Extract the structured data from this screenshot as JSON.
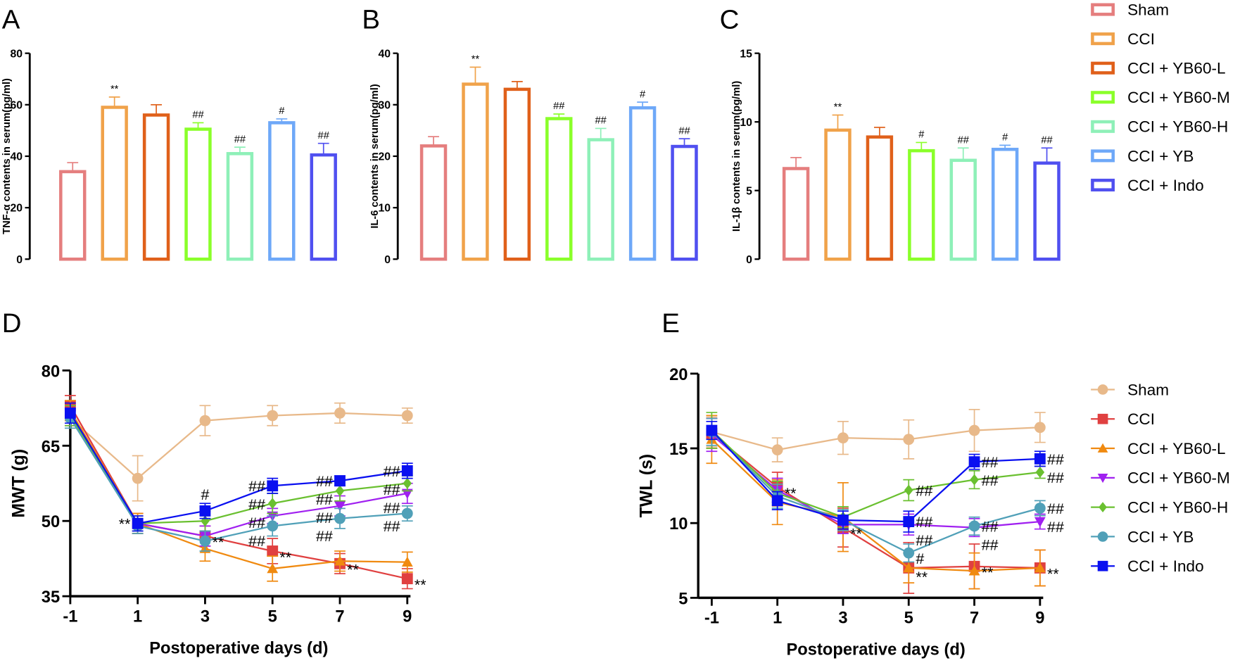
{
  "colors": {
    "bars": [
      "#e57e7e",
      "#f0a24a",
      "#e0601a",
      "#8aff2a",
      "#8ef0b8",
      "#6ea8f8",
      "#5050f0"
    ],
    "lines": [
      "#e8b98a",
      "#e04040",
      "#f08a10",
      "#a020f0",
      "#6ac030",
      "#50a0b8",
      "#0a10f0"
    ]
  },
  "bar_legend": [
    "Sham",
    "CCI",
    "CCI + YB60-L",
    "CCI + YB60-M",
    "CCI + YB60-H",
    "CCI + YB",
    "CCI + Indo"
  ],
  "line_legend": [
    "Sham",
    "CCI",
    "CCI + YB60-L",
    "CCI + YB60-M",
    "CCI + YB60-H",
    "CCI + YB",
    "CCI + Indo"
  ],
  "line_markers": [
    "circle",
    "square",
    "triangle-up",
    "triangle-down",
    "diamond",
    "circle",
    "square"
  ],
  "chart_data": [
    {
      "panel": "A",
      "type": "bar",
      "ylabel": "TNF-α contents in serum(pg/ml)",
      "ylim": [
        0,
        80
      ],
      "yticks": [
        0,
        20,
        40,
        60,
        80
      ],
      "categories": [
        "Sham",
        "CCI",
        "CCI + YB60-L",
        "CCI + YB60-M",
        "CCI + YB60-H",
        "CCI + YB",
        "CCI + Indo"
      ],
      "values": [
        34,
        59,
        56,
        50.5,
        41,
        53,
        40.5
      ],
      "errors": [
        3.5,
        4,
        4,
        2.5,
        2.5,
        1.5,
        4.5
      ],
      "annotations": [
        "",
        "**",
        "",
        "##",
        "##",
        "#",
        "##"
      ]
    },
    {
      "panel": "B",
      "type": "bar",
      "ylabel": "IL-6 contents in serum(pg/ml)",
      "ylim": [
        0,
        40
      ],
      "yticks": [
        0,
        10,
        20,
        30,
        40
      ],
      "categories": [
        "Sham",
        "CCI",
        "CCI + YB60-L",
        "CCI + YB60-M",
        "CCI + YB60-H",
        "CCI + YB",
        "CCI + Indo"
      ],
      "values": [
        22,
        34,
        33,
        27.3,
        23.2,
        29.4,
        21.9
      ],
      "errors": [
        1.8,
        3.3,
        1.5,
        0.9,
        2.2,
        1.1,
        1.5
      ],
      "annotations": [
        "",
        "**",
        "",
        "##",
        "##",
        "#",
        "##"
      ]
    },
    {
      "panel": "C",
      "type": "bar",
      "ylabel": "IL-1β contents in serum(pg/ml)",
      "ylim": [
        0,
        15
      ],
      "yticks": [
        0,
        5,
        10,
        15
      ],
      "categories": [
        "Sham",
        "CCI",
        "CCI + YB60-L",
        "CCI + YB60-M",
        "CCI + YB60-H",
        "CCI + YB",
        "CCI + Indo"
      ],
      "values": [
        6.6,
        9.4,
        8.9,
        7.9,
        7.2,
        8.0,
        7.0
      ],
      "errors": [
        0.8,
        1.1,
        0.7,
        0.6,
        0.9,
        0.3,
        1.1
      ],
      "annotations": [
        "",
        "**",
        "",
        "#",
        "##",
        "#",
        "##"
      ]
    },
    {
      "panel": "D",
      "type": "line",
      "xlabel": "Postoperative days (d)",
      "ylabel": "MWT (g)",
      "x": [
        -1,
        1,
        3,
        5,
        7,
        9
      ],
      "ylim": [
        35,
        80
      ],
      "yticks": [
        35,
        50,
        65,
        80
      ],
      "series": [
        {
          "name": "Sham",
          "values": [
            70.5,
            58.5,
            70,
            71,
            71.5,
            71
          ],
          "errors": [
            2,
            4.5,
            3,
            2,
            2,
            1.5
          ]
        },
        {
          "name": "CCI",
          "values": [
            73,
            49.5,
            47,
            44,
            41.5,
            38.5
          ],
          "errors": [
            2,
            2,
            2,
            2.5,
            2,
            2
          ]
        },
        {
          "name": "CCI + YB60-L",
          "values": [
            72,
            49.5,
            44.5,
            40.5,
            42,
            41.8
          ],
          "errors": [
            2,
            2,
            2.5,
            2.5,
            2,
            2
          ]
        },
        {
          "name": "CCI + YB60-M",
          "values": [
            71,
            49.5,
            47,
            51,
            53,
            55.5
          ],
          "errors": [
            2,
            1.5,
            2,
            1.5,
            2,
            2
          ]
        },
        {
          "name": "CCI + YB60-H",
          "values": [
            71,
            49.5,
            50,
            53.5,
            56,
            57.5
          ],
          "errors": [
            2,
            1.5,
            2,
            2,
            2,
            1.5
          ]
        },
        {
          "name": "CCI + YB",
          "values": [
            70.5,
            49,
            46,
            49,
            50.5,
            51.5
          ],
          "errors": [
            2,
            1.5,
            2,
            2,
            2,
            1.5
          ]
        },
        {
          "name": "CCI + Indo",
          "values": [
            71.5,
            49.5,
            52,
            57,
            58,
            60
          ],
          "errors": [
            2,
            1.5,
            1.5,
            1.5,
            1,
            1.5
          ]
        }
      ],
      "annotations": [
        {
          "text": "**",
          "series": 1,
          "x": 1,
          "side": "left"
        },
        {
          "text": "#",
          "series": 6,
          "x": 3,
          "side": "above"
        },
        {
          "text": "**",
          "series": 1,
          "x": 3,
          "side": "right"
        },
        {
          "text": "##",
          "series": 6,
          "x": 5,
          "side": "left"
        },
        {
          "text": "##",
          "series": 4,
          "x": 5,
          "side": "left"
        },
        {
          "text": "##",
          "series": 3,
          "x": 5,
          "side": "left"
        },
        {
          "text": "##",
          "series": 5,
          "x": 5,
          "side": "left"
        },
        {
          "text": "**",
          "series": 1,
          "x": 5,
          "side": "right"
        },
        {
          "text": "##",
          "series": 6,
          "x": 7,
          "side": "left"
        },
        {
          "text": "##",
          "series": 4,
          "x": 7,
          "side": "left"
        },
        {
          "text": "##",
          "series": 3,
          "x": 7,
          "side": "left"
        },
        {
          "text": "##",
          "series": 5,
          "x": 7,
          "side": "left"
        },
        {
          "text": "**",
          "series": 1,
          "x": 7,
          "side": "right"
        },
        {
          "text": "##",
          "series": 6,
          "x": 9,
          "side": "left"
        },
        {
          "text": "##",
          "series": 4,
          "x": 9,
          "side": "left"
        },
        {
          "text": "##",
          "series": 3,
          "x": 9,
          "side": "left"
        },
        {
          "text": "##",
          "series": 5,
          "x": 9,
          "side": "left"
        },
        {
          "text": "**",
          "series": 1,
          "x": 9,
          "side": "right"
        }
      ]
    },
    {
      "panel": "E",
      "type": "line",
      "xlabel": "Postoperative days (d)",
      "ylabel": "TWL (s)",
      "x": [
        -1,
        1,
        3,
        5,
        7,
        9
      ],
      "ylim": [
        5,
        20
      ],
      "yticks": [
        5,
        10,
        15,
        20
      ],
      "series": [
        {
          "name": "Sham",
          "values": [
            16.1,
            14.9,
            15.7,
            15.6,
            16.2,
            16.4
          ],
          "errors": [
            1,
            0.8,
            1.1,
            1.3,
            1.4,
            1
          ]
        },
        {
          "name": "CCI",
          "values": [
            16,
            12.4,
            9.7,
            7,
            7.1,
            7
          ],
          "errors": [
            1,
            1,
            1.3,
            1.7,
            1.5,
            1.2
          ]
        },
        {
          "name": "CCI + YB60-L",
          "values": [
            15.6,
            11.4,
            10.4,
            7,
            6.8,
            7
          ],
          "errors": [
            1.6,
            1.5,
            2.3,
            1,
            1.2,
            1.2
          ]
        },
        {
          "name": "CCI + YB60-M",
          "values": [
            15.9,
            12.2,
            9.9,
            9.9,
            9.7,
            10.1
          ],
          "errors": [
            1.1,
            0.8,
            0.6,
            0.7,
            0.6,
            0.5
          ]
        },
        {
          "name": "CCI + YB60-H",
          "values": [
            16.2,
            12,
            10.4,
            12.2,
            12.9,
            13.4
          ],
          "errors": [
            1.2,
            0.8,
            0.7,
            0.7,
            0.6,
            0.4
          ]
        },
        {
          "name": "CCI + YB",
          "values": [
            16.1,
            11.8,
            10.2,
            8,
            9.8,
            11
          ],
          "errors": [
            0.9,
            0.8,
            0.7,
            0.6,
            0.6,
            0.5
          ]
        },
        {
          "name": "CCI + Indo",
          "values": [
            16.2,
            11.5,
            10.2,
            10.1,
            14.1,
            14.3
          ],
          "errors": [
            0.6,
            0.6,
            0.6,
            0.7,
            0.5,
            0.5
          ]
        }
      ],
      "annotations": [
        {
          "text": "**",
          "series": 1,
          "x": 1,
          "side": "right"
        },
        {
          "text": "**",
          "series": 1,
          "x": 3,
          "side": "right"
        },
        {
          "text": "##",
          "series": 4,
          "x": 5,
          "side": "right"
        },
        {
          "text": "##",
          "series": 6,
          "x": 5,
          "side": "right"
        },
        {
          "text": "##",
          "series": 3,
          "x": 5,
          "side": "right"
        },
        {
          "text": "#",
          "series": 5,
          "x": 5,
          "side": "right"
        },
        {
          "text": "**",
          "series": 1,
          "x": 5,
          "side": "right"
        },
        {
          "text": "##",
          "series": 6,
          "x": 7,
          "side": "right"
        },
        {
          "text": "##",
          "series": 4,
          "x": 7,
          "side": "right"
        },
        {
          "text": "##",
          "series": 5,
          "x": 7,
          "side": "right"
        },
        {
          "text": "##",
          "series": 3,
          "x": 7,
          "side": "right"
        },
        {
          "text": "**",
          "series": 1,
          "x": 7,
          "side": "right"
        },
        {
          "text": "##",
          "series": 6,
          "x": 9,
          "side": "right"
        },
        {
          "text": "##",
          "series": 4,
          "x": 9,
          "side": "right"
        },
        {
          "text": "##",
          "series": 5,
          "x": 9,
          "side": "right"
        },
        {
          "text": "##",
          "series": 3,
          "x": 9,
          "side": "right"
        },
        {
          "text": "**",
          "series": 1,
          "x": 9,
          "side": "right"
        }
      ]
    }
  ]
}
